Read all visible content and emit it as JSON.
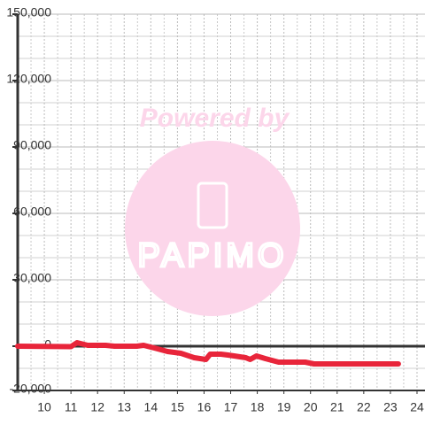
{
  "chart_data": {
    "type": "line",
    "watermark": {
      "top_text": "Powered by",
      "brand": "PAPIMO"
    },
    "x": [
      9,
      11.0,
      11.23,
      11.63,
      12.3,
      12.63,
      13.47,
      13.73,
      14.13,
      14.63,
      15.13,
      15.63,
      16.07,
      16.23,
      16.63,
      16.9,
      17.13,
      17.57,
      17.73,
      17.97,
      18.3,
      18.8,
      19.8,
      20.13,
      23.3
    ],
    "series": [
      {
        "color": "#e8253a",
        "values": [
          0,
          -200,
          1600,
          400,
          400,
          0,
          0,
          400,
          -800,
          -2400,
          -3200,
          -5200,
          -6000,
          -3600,
          -3600,
          -4000,
          -4400,
          -5200,
          -6000,
          -4400,
          -5600,
          -7200,
          -7200,
          -8000,
          -8000
        ]
      }
    ],
    "xlim": [
      9,
      24.3
    ],
    "ylim": [
      -20000,
      150000
    ],
    "xticks": [
      10,
      11,
      12,
      13,
      14,
      15,
      16,
      17,
      18,
      19,
      20,
      21,
      22,
      23,
      24
    ],
    "yticks": [
      {
        "value": -20000,
        "label": "-20,000"
      },
      0,
      {
        "value": 30000,
        "label": "30,000"
      },
      {
        "value": 60000,
        "label": "60,000"
      },
      {
        "value": 90000,
        "label": "90,000"
      },
      {
        "value": 120000,
        "label": "120,000"
      },
      {
        "value": 150000,
        "label": "150,000"
      }
    ],
    "xminorticks": [
      9.5,
      10.5,
      11.5,
      12.5,
      13.5,
      14.5,
      15.5,
      16.5,
      17.5,
      18.5,
      19.5,
      20.5,
      21.5,
      22.5,
      23.5
    ],
    "yminorticks": [
      -10000,
      10000,
      20000,
      40000,
      50000,
      70000,
      80000,
      100000,
      110000,
      130000,
      140000
    ],
    "grid": true
  }
}
